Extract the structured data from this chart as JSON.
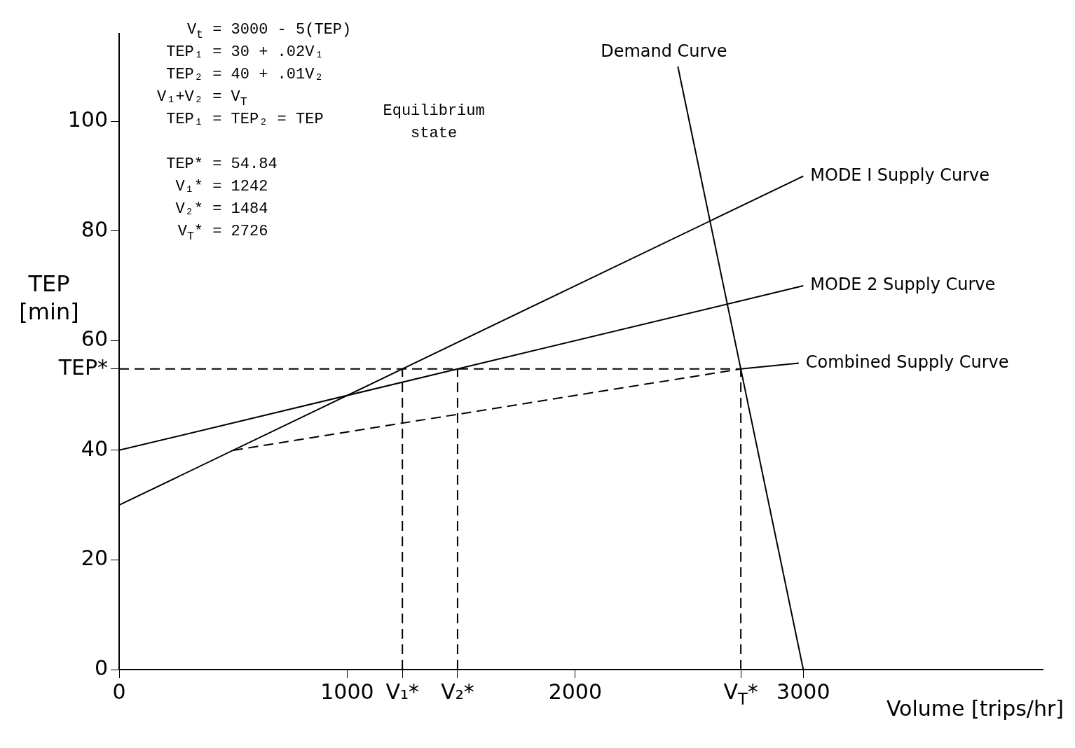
{
  "chart_data": {
    "type": "line",
    "xlabel": "Volume [trips/hr]",
    "ylabel": "TEP [min]",
    "xlim": [
      0,
      4050
    ],
    "ylim": [
      0,
      116
    ],
    "xticks": [
      0,
      1000,
      {
        "value": 1242,
        "label": "V₁*"
      },
      {
        "value": 1484,
        "label": "V₂*"
      },
      2000,
      {
        "value": 2726,
        "label": "V$_{T}$*"
      },
      3000
    ],
    "yticks": [
      0,
      20,
      40,
      {
        "value": 54.84,
        "label": "TEP*"
      },
      60,
      80,
      100
    ],
    "grid": false,
    "legend": false,
    "marker": "none",
    "series": [
      {
        "name": "Demand Curve",
        "color": "#000000",
        "x": [
          2450,
          3000
        ],
        "values": [
          110,
          0
        ]
      },
      {
        "name": "MODE I Supply Curve",
        "color": "#000000",
        "x": [
          0,
          3000
        ],
        "values": [
          30,
          90
        ]
      },
      {
        "name": "MODE 2 Supply Curve",
        "color": "#000000",
        "x": [
          0,
          3000
        ],
        "values": [
          40,
          70
        ]
      },
      {
        "color": "#000000",
        "x": [
          500,
          2726
        ],
        "values": [
          40,
          54.84
        ],
        "line_style": "dashed"
      },
      {
        "name": "Combined Supply Curve",
        "color": "#000000",
        "x": [
          2726,
          2980
        ],
        "values": [
          54.84,
          55.9
        ]
      },
      {
        "color": "#000000",
        "x": [
          0,
          2726
        ],
        "values": [
          54.84,
          54.84
        ],
        "line_style": "dashed"
      },
      {
        "color": "#000000",
        "x": [
          1242,
          1242
        ],
        "values": [
          0,
          54.84
        ],
        "line_style": "dashed"
      },
      {
        "color": "#000000",
        "x": [
          1484,
          1484
        ],
        "values": [
          0,
          54.84
        ],
        "line_style": "dashed"
      },
      {
        "color": "#000000",
        "x": [
          2726,
          2726
        ],
        "values": [
          0,
          54.84
        ],
        "line_style": "dashed"
      }
    ],
    "annotations": [
      "V$_{t}$ = 3000 - 5(TEP)",
      "TEP₁ = 30 + .02V₁",
      "TEP₂ = 40 + .01V₂",
      "V₁+V₂ = V$_{T}$",
      "TEP₁ = TEP₂ = TEP",
      "TEP* = 54.84",
      "V₁* = 1242",
      "V₂* = 1484",
      "V$_{T}$* = 2726",
      "Equilibrium state"
    ]
  }
}
